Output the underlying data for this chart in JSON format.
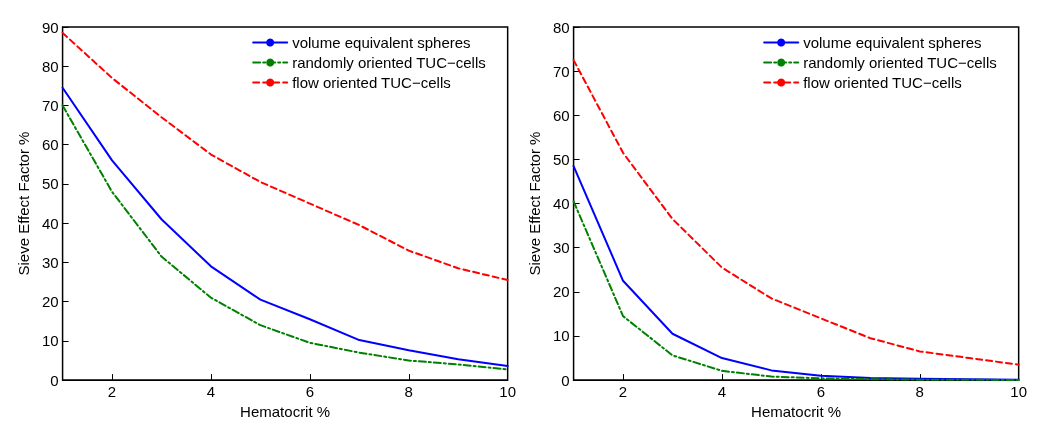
{
  "chart_data": [
    {
      "type": "line",
      "xlabel": "Hematocrit %",
      "ylabel": "Sieve Effect Factor %",
      "x": [
        1,
        2,
        3,
        4,
        5,
        6,
        7,
        8,
        9,
        10
      ],
      "xlim": [
        1,
        10
      ],
      "xticks": [
        2,
        4,
        6,
        8,
        10
      ],
      "ylim": [
        0,
        90
      ],
      "yticks": [
        0,
        10,
        20,
        30,
        40,
        50,
        60,
        70,
        80,
        90
      ],
      "grid": false,
      "legend": "top right",
      "series": [
        {
          "name": "volume equivalent spheres",
          "color": "#0000ff",
          "line_style": "solid",
          "values": [
            74.5,
            56,
            41,
            29,
            20.5,
            15.5,
            10.2,
            7.6,
            5.3,
            3.6
          ]
        },
        {
          "name": "randomly oriented TUC−cells",
          "color": "#008000",
          "line_style": "dashed",
          "values": [
            70,
            48,
            31.5,
            21,
            14,
            9.5,
            7,
            5,
            4,
            2.7
          ]
        },
        {
          "name": "flow oriented TUC−cells",
          "color": "#ff0000",
          "line_style": "dashed",
          "values": [
            88.5,
            77,
            67,
            57.5,
            50.5,
            45,
            39.5,
            33,
            28.5,
            25.5
          ]
        }
      ]
    },
    {
      "type": "line",
      "xlabel": "Hematocrit %",
      "ylabel": "Sieve Effect Factor %",
      "x": [
        1,
        2,
        3,
        4,
        5,
        6,
        7,
        8,
        9,
        10
      ],
      "xlim": [
        1,
        10
      ],
      "xticks": [
        2,
        4,
        6,
        8,
        10
      ],
      "ylim": [
        0,
        80
      ],
      "yticks": [
        0,
        10,
        20,
        30,
        40,
        50,
        60,
        70,
        80
      ],
      "grid": false,
      "legend": "top right",
      "series": [
        {
          "name": "volume equivalent spheres",
          "color": "#0000ff",
          "line_style": "solid",
          "values": [
            48.5,
            22.5,
            10.5,
            5,
            2.2,
            1,
            0.5,
            0.3,
            0.2,
            0.1
          ]
        },
        {
          "name": "randomly oriented TUC−cells",
          "color": "#008000",
          "line_style": "dashed",
          "values": [
            40.5,
            14.5,
            5.6,
            2.1,
            0.8,
            0.4,
            0.2,
            0.1,
            0.1,
            0
          ]
        },
        {
          "name": "flow oriented TUC−cells",
          "color": "#ff0000",
          "line_style": "dashed",
          "values": [
            72.5,
            51.5,
            36.5,
            25.5,
            18.5,
            14,
            9.5,
            6.5,
            5,
            3.5
          ]
        }
      ]
    }
  ]
}
